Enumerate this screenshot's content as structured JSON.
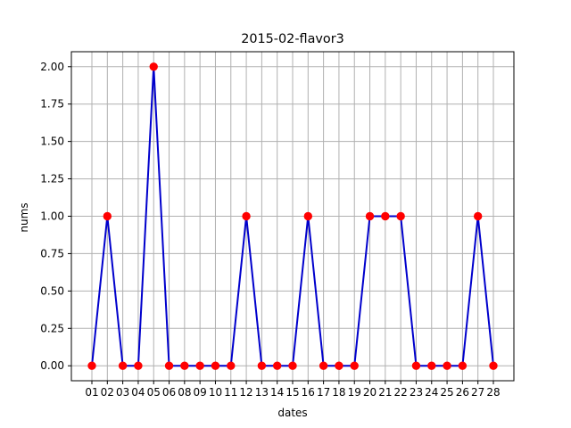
{
  "chart_data": {
    "type": "line",
    "title": "2015-02-flavor3",
    "xlabel": "dates",
    "ylabel": "nums",
    "categories": [
      "01",
      "02",
      "03",
      "04",
      "05",
      "06",
      "08",
      "09",
      "10",
      "11",
      "12",
      "13",
      "14",
      "15",
      "16",
      "17",
      "18",
      "19",
      "20",
      "21",
      "22",
      "23",
      "24",
      "25",
      "26",
      "27",
      "28"
    ],
    "series": [
      {
        "values": [
          0,
          1,
          0,
          0,
          2,
          0,
          0,
          0,
          0,
          0,
          1,
          0,
          0,
          0,
          1,
          0,
          0,
          0,
          1,
          1,
          1,
          0,
          0,
          0,
          0,
          1,
          0
        ]
      }
    ],
    "ylim": [
      -0.1,
      2.1
    ],
    "yticks": [
      "0.00",
      "0.25",
      "0.50",
      "0.75",
      "1.00",
      "1.25",
      "1.50",
      "1.75",
      "2.00"
    ],
    "grid": true,
    "line_color": "#0000cc",
    "marker_color": "#ff0000"
  }
}
